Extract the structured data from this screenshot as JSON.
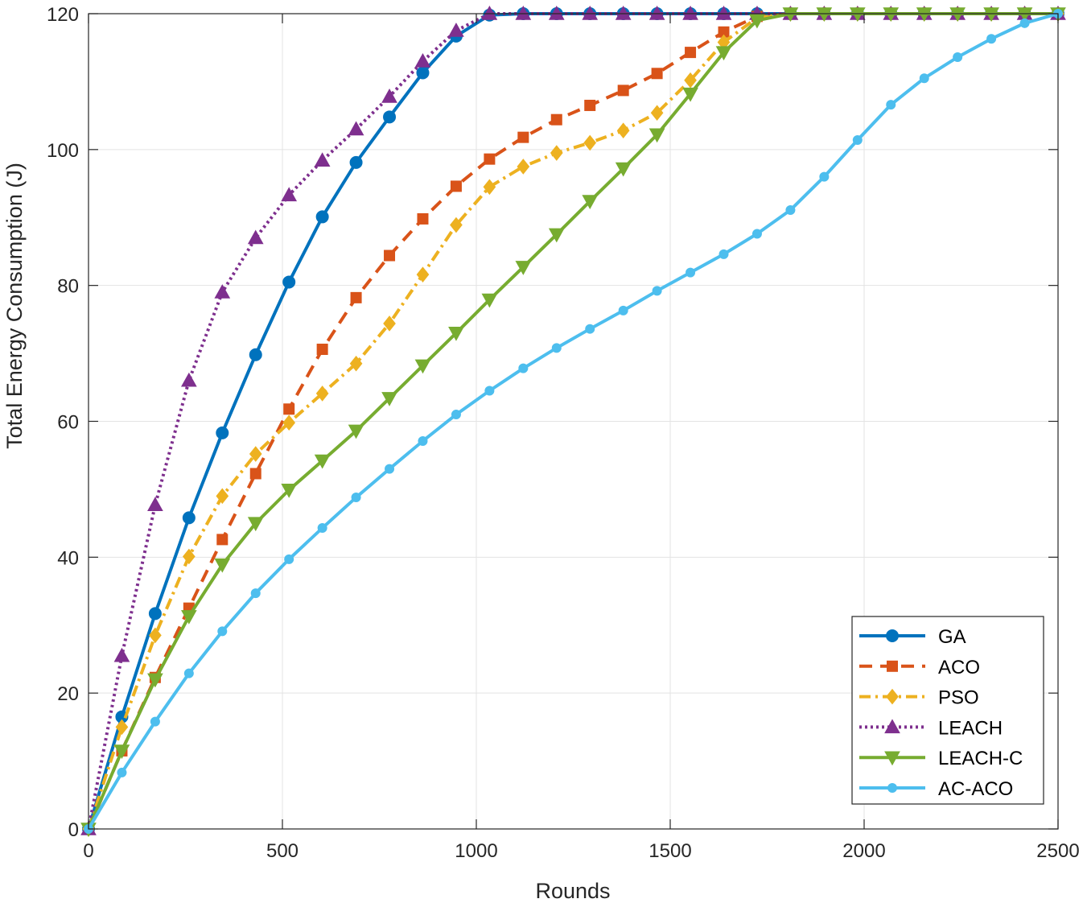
{
  "chart_data": {
    "type": "line",
    "title": "",
    "xlabel": "Rounds",
    "ylabel": "Total Energy Consumption (J)",
    "xlim": [
      0,
      2500
    ],
    "ylim": [
      0,
      120
    ],
    "xticks": [
      0,
      500,
      1000,
      1500,
      2000,
      2500
    ],
    "yticks": [
      0,
      20,
      40,
      60,
      80,
      100,
      120
    ],
    "grid": true,
    "legend_position": "bottom-right",
    "x": [
      0,
      86,
      172,
      259,
      345,
      431,
      517,
      603,
      690,
      776,
      862,
      948,
      1034,
      1121,
      1207,
      1293,
      1379,
      1466,
      1552,
      1638,
      1724,
      1810,
      1897,
      1983,
      2069,
      2155,
      2241,
      2328,
      2414,
      2500
    ],
    "series": [
      {
        "name": "GA",
        "color": "#0072BD",
        "dash": "solid",
        "marker": "circle",
        "values": [
          0,
          16.5,
          31.7,
          45.8,
          58.3,
          69.8,
          80.5,
          90.1,
          98.1,
          104.8,
          111.3,
          116.7,
          119.8,
          120,
          120,
          120,
          120,
          120,
          120,
          120,
          120,
          120,
          120,
          120,
          120,
          120,
          120,
          120,
          120,
          120
        ]
      },
      {
        "name": "ACO",
        "color": "#D95319",
        "dash": "dashed",
        "marker": "square",
        "values": [
          0,
          11.5,
          22.3,
          32.5,
          42.6,
          52.3,
          61.8,
          70.6,
          78.2,
          84.4,
          89.8,
          94.6,
          98.6,
          101.8,
          104.4,
          106.5,
          108.7,
          111.2,
          114.3,
          117.3,
          119.6,
          120,
          120,
          120,
          120,
          120,
          120,
          120,
          120,
          120
        ]
      },
      {
        "name": "PSO",
        "color": "#EDB120",
        "dash": "dashdot",
        "marker": "diamond",
        "values": [
          0,
          15.0,
          28.5,
          40.1,
          49.0,
          55.2,
          59.8,
          64.1,
          68.5,
          74.4,
          81.6,
          88.9,
          94.5,
          97.5,
          99.5,
          101.0,
          102.8,
          105.4,
          110.2,
          115.8,
          119.4,
          120,
          120,
          120,
          120,
          120,
          120,
          120,
          120,
          120
        ]
      },
      {
        "name": "LEACH",
        "color": "#7E2F8E",
        "dash": "dotted",
        "marker": "triangle-up",
        "values": [
          0,
          25.5,
          47.7,
          66.0,
          79.0,
          87.0,
          93.3,
          98.4,
          103.0,
          107.8,
          113.0,
          117.5,
          120,
          120,
          120,
          120,
          120,
          120,
          120,
          120,
          120,
          120,
          120,
          120,
          120,
          120,
          120,
          120,
          120,
          120
        ]
      },
      {
        "name": "LEACH-C",
        "color": "#77AC30",
        "dash": "solid",
        "marker": "triangle-down",
        "values": [
          0,
          11.5,
          22.0,
          31.3,
          38.9,
          45.0,
          49.9,
          54.2,
          58.6,
          63.4,
          68.2,
          73.0,
          77.9,
          82.7,
          87.5,
          92.4,
          97.2,
          102.2,
          108.2,
          114.3,
          119.0,
          120,
          120,
          120,
          120,
          120,
          120,
          120,
          120,
          120
        ]
      },
      {
        "name": "AC-ACO",
        "color": "#4DBEEE",
        "dash": "solid",
        "marker": "small-circle",
        "values": [
          0,
          8.3,
          15.8,
          22.9,
          29.1,
          34.7,
          39.7,
          44.3,
          48.8,
          53.0,
          57.1,
          61.0,
          64.5,
          67.8,
          70.8,
          73.6,
          76.3,
          79.2,
          81.9,
          84.6,
          87.6,
          91.1,
          96.0,
          101.4,
          106.6,
          110.5,
          113.6,
          116.3,
          118.6,
          120
        ]
      }
    ]
  }
}
